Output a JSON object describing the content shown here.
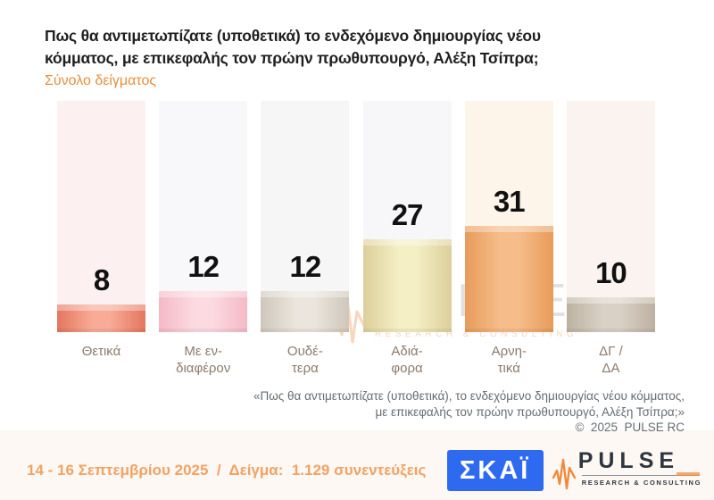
{
  "header": {
    "title": "Πως θα αντιμετωπίζατε (υποθετικά) το ενδεχόμενο δημιουργίας νέου κόμματος, με επικεφαλής τον πρώην πρωθυπουργό, Αλέξη Τσίπρα;",
    "subtitle": "Σύνολο δείγματος"
  },
  "chart_data": {
    "type": "bar",
    "title": "Πως θα αντιμετωπίζατε (υποθετικά) το ενδεχόμενο δημιουργίας νέου κόμματος, με επικεφαλής τον πρώην πρωθυπουργό, Αλέξη Τσίπρα;",
    "subtitle": "Σύνολο δείγματος",
    "categories": [
      "Θετικά",
      "Με ενδιαφέρον",
      "Ουδέτερα",
      "Αδιάφορα",
      "Αρνητικά",
      "ΔΓ / ΔΑ"
    ],
    "values": [
      8,
      12,
      12,
      27,
      31,
      10
    ],
    "unit": "percent",
    "ylim": [
      0,
      67
    ],
    "grid": false,
    "data_labels": true,
    "legend": false,
    "bars": [
      {
        "label": "Θετικά",
        "label_lines": [
          "Θετικά"
        ],
        "value": 8,
        "edge_color": "#e4765e",
        "mid_color": "#f8ab97",
        "track_color": "#fcf0f0"
      },
      {
        "label": "Με ενδιαφέρον",
        "label_lines": [
          "Με εν-",
          "διαφέρον"
        ],
        "value": 12,
        "edge_color": "#f5b9c6",
        "mid_color": "#fcdae1",
        "track_color": "#f8f8fa"
      },
      {
        "label": "Ουδέτερα",
        "label_lines": [
          "Ουδέ-",
          "τερα"
        ],
        "value": 12,
        "edge_color": "#cfc7bb",
        "mid_color": "#ebe5dd",
        "track_color": "#f6f6f6"
      },
      {
        "label": "Αδιάφορα",
        "label_lines": [
          "Αδιά-",
          "φορα"
        ],
        "value": 27,
        "edge_color": "#dccf9a",
        "mid_color": "#f5efc6",
        "track_color": "#f7f6f8"
      },
      {
        "label": "Αρνητικά",
        "label_lines": [
          "Αρνη-",
          "τικά"
        ],
        "value": 31,
        "edge_color": "#e89b59",
        "mid_color": "#f6bd8b",
        "track_color": "#fdf5ea"
      },
      {
        "label": "ΔΓ / ΔΑ",
        "label_lines": [
          "ΔΓ /",
          "ΔΑ"
        ],
        "value": 10,
        "edge_color": "#bdb1a1",
        "mid_color": "#d9d1c6",
        "track_color": "#faf3f0"
      }
    ]
  },
  "watermark": {
    "text": "PULSE",
    "subtext": "RESEARCH & CONSULTING"
  },
  "quote": {
    "line1": "«Πως θα αντιμετωπίζατε (υποθετικά), το ενδεχόμενο δημιουργίας νέου κόμματος,",
    "line2": "με επικεφαλής τον πρώην πρωθυπουργό, Αλέξη Τσίπρα;»",
    "copyright": "©  2025  PULSE RC"
  },
  "bottom_bar": {
    "fieldwork": "14 - 16 Σεπτεμβρίου 2025  /  Δείγμα:  1.129 συνεντεύξεις",
    "skai_logo": "ΣΚΑΪ",
    "pulse_logo": "PULSE",
    "pulse_sub": "RESEARCH & CONSULTING"
  },
  "colors": {
    "subtitle_orange": "#e78f3c",
    "fieldwork_orange": "#f2a263",
    "skai_blue": "#2e6af0",
    "pulse_wave_orange": "#f08a3c",
    "value_label_black": "#111111",
    "category_label_brown": "#8c7a6c",
    "quote_gray": "#666c72"
  }
}
